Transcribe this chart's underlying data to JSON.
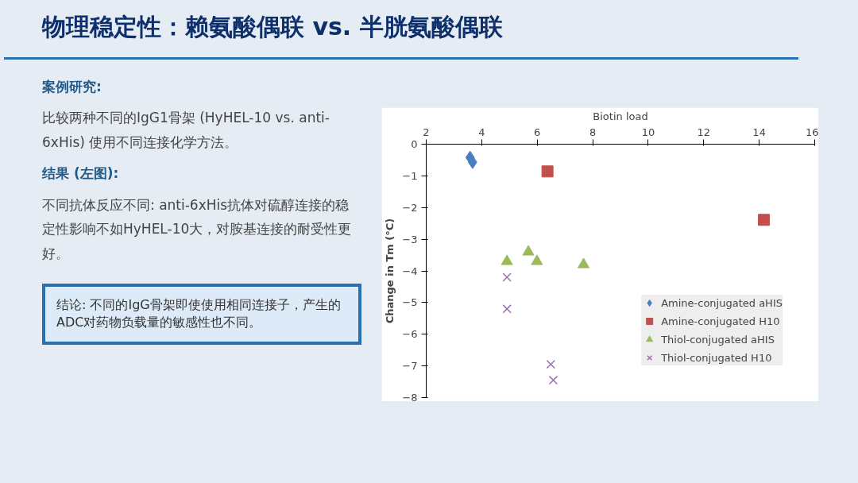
{
  "chart_data": {
    "type": "scatter",
    "title": "物理稳定性：赖氨酸偶联 vs. 半胱氨酸偶联",
    "annotations": [
      "案例研究:",
      "比较两种不同的IgG1骨架 (HyHEL-10 vs. anti-6xHis) 使用不同连接化学方法。",
      "结果 (左图):",
      "不同抗体反应不同: anti-6xHis抗体对硫醇连接的稳定性影响不如HyHEL-10大，对胺基连接的耐受性更好。",
      "结论: 不同的IgG骨架即使使用相同连接子，产生的ADC对药物负载量的敏感性也不同。"
    ],
    "xlabel": "Biotin load",
    "ylabel": "Change in Tm (°C)",
    "xlim": [
      2,
      16
    ],
    "xticks": [
      2,
      4,
      6,
      8,
      10,
      12,
      14,
      16
    ],
    "ylim": [
      -8,
      0
    ],
    "yticks": [
      0,
      -1,
      -2,
      -3,
      -4,
      -5,
      -6,
      -7,
      -8
    ],
    "grid": false,
    "legend": "right",
    "series": [
      {
        "name": "Amine-conjugated aHIS",
        "color": "#4a7ebf",
        "marker": "diamond",
        "x": [
          3.58,
          3.67
        ],
        "values": [
          -0.42,
          -0.57
        ]
      },
      {
        "name": "Amine-conjugated H10",
        "color": "#c0504d",
        "marker": "square",
        "x": [
          6.37,
          14.17
        ],
        "values": [
          -0.86,
          -2.39
        ]
      },
      {
        "name": "Thiol-conjugated aHIS",
        "color": "#9bbb59",
        "marker": "triangle",
        "x": [
          4.91,
          5.68,
          5.99,
          7.67
        ],
        "values": [
          -3.7,
          -3.4,
          -3.7,
          -3.8
        ]
      },
      {
        "name": "Thiol-conjugated H10",
        "color": "#9b6fb5",
        "marker": "cross",
        "x": [
          4.91,
          4.91,
          6.49,
          6.58
        ],
        "values": [
          -4.2,
          -5.2,
          -6.95,
          -7.45
        ]
      }
    ]
  }
}
